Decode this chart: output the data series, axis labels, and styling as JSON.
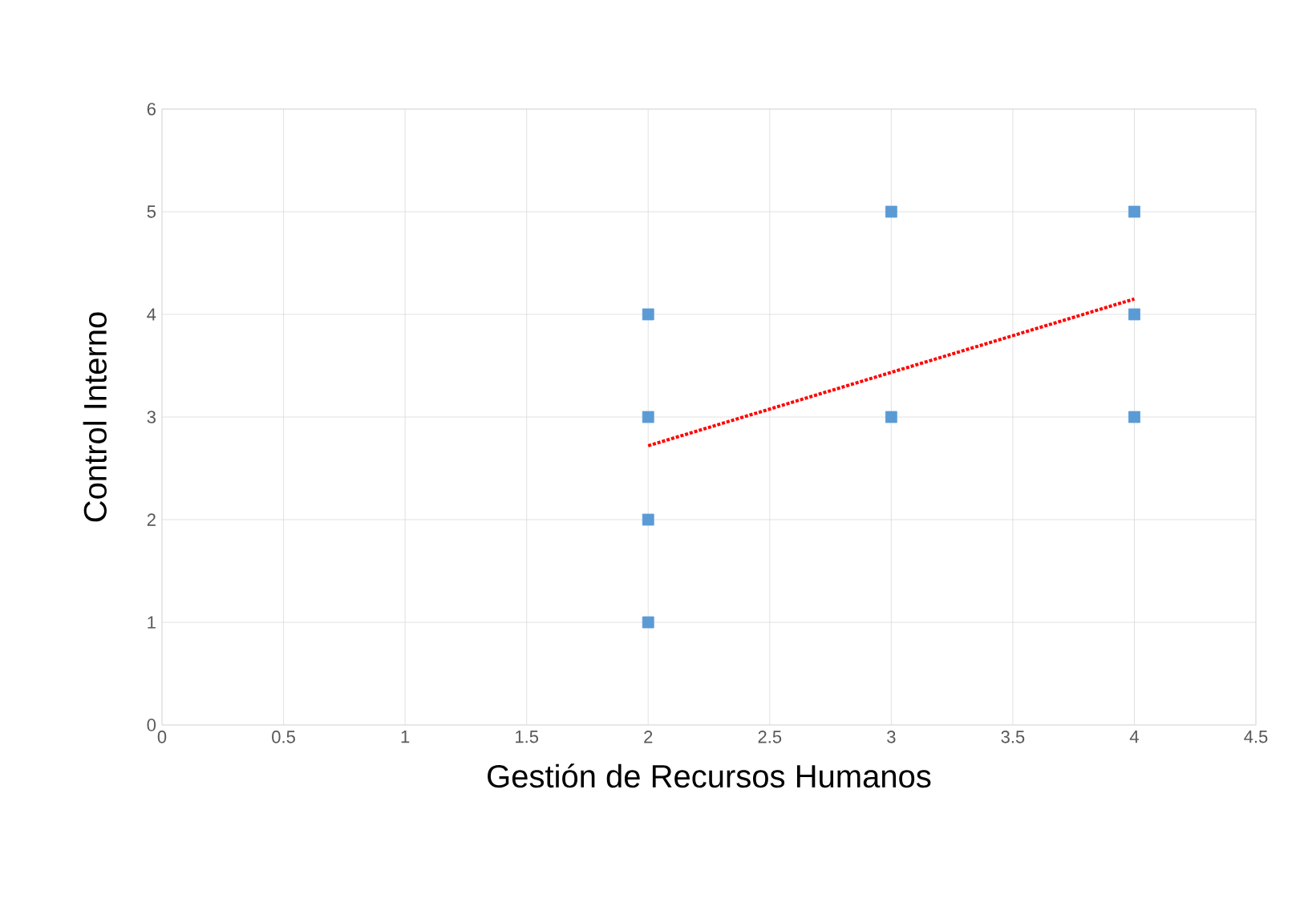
{
  "chart_data": {
    "type": "scatter",
    "xlabel": "Gestión de Recursos Humanos",
    "ylabel": "Control Interno",
    "xlim": [
      0,
      4.5
    ],
    "ylim": [
      0,
      6
    ],
    "xticks": [
      0,
      0.5,
      1,
      1.5,
      2,
      2.5,
      3,
      3.5,
      4,
      4.5
    ],
    "yticks": [
      0,
      1,
      2,
      3,
      4,
      5,
      6
    ],
    "grid": true,
    "marker": "square",
    "series": [
      {
        "color": "#5b9bd5",
        "x": [
          2,
          2,
          2,
          2,
          3,
          3,
          4,
          4,
          4
        ],
        "values": [
          1,
          2,
          3,
          4,
          3,
          5,
          3,
          4,
          5
        ]
      },
      {
        "type": "line",
        "color": "#ff0000",
        "line_style": "dotted",
        "marker": "none",
        "x": [
          2,
          4
        ],
        "values": [
          2.72,
          4.15
        ]
      }
    ]
  }
}
